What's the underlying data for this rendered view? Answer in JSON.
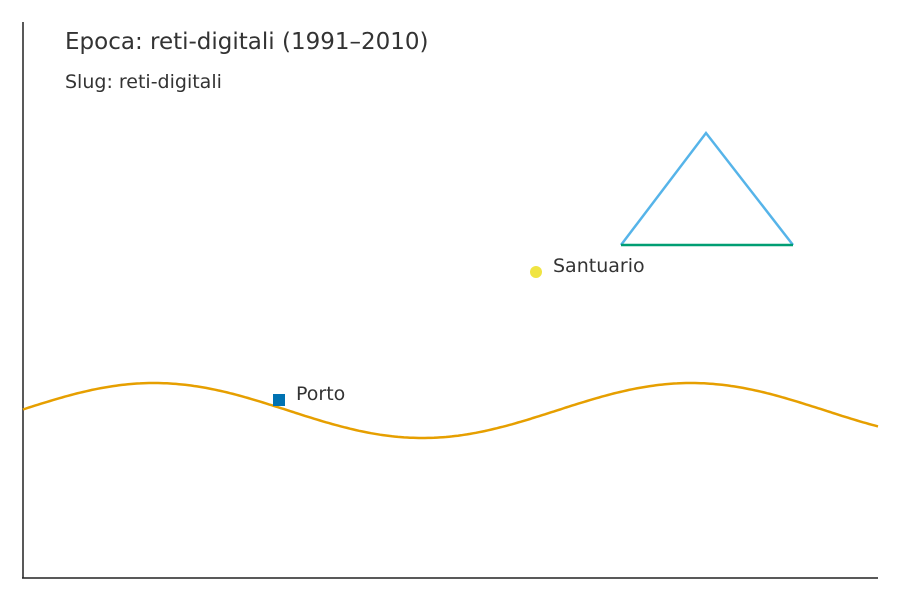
{
  "header": {
    "title": "Epoca: reti-digitali (1991–2010)",
    "subtitle": "Slug: reti-digitali"
  },
  "places": [
    {
      "name": "Porto",
      "marker": "square",
      "color": "#0072b2"
    },
    {
      "name": "Santuario",
      "marker": "circle",
      "color": "#f0e442"
    }
  ],
  "colors": {
    "river": "#e69f00",
    "mountain_sides": "#56b4e9",
    "mountain_base": "#009e73",
    "axis": "#222222",
    "text": "#333333"
  }
}
